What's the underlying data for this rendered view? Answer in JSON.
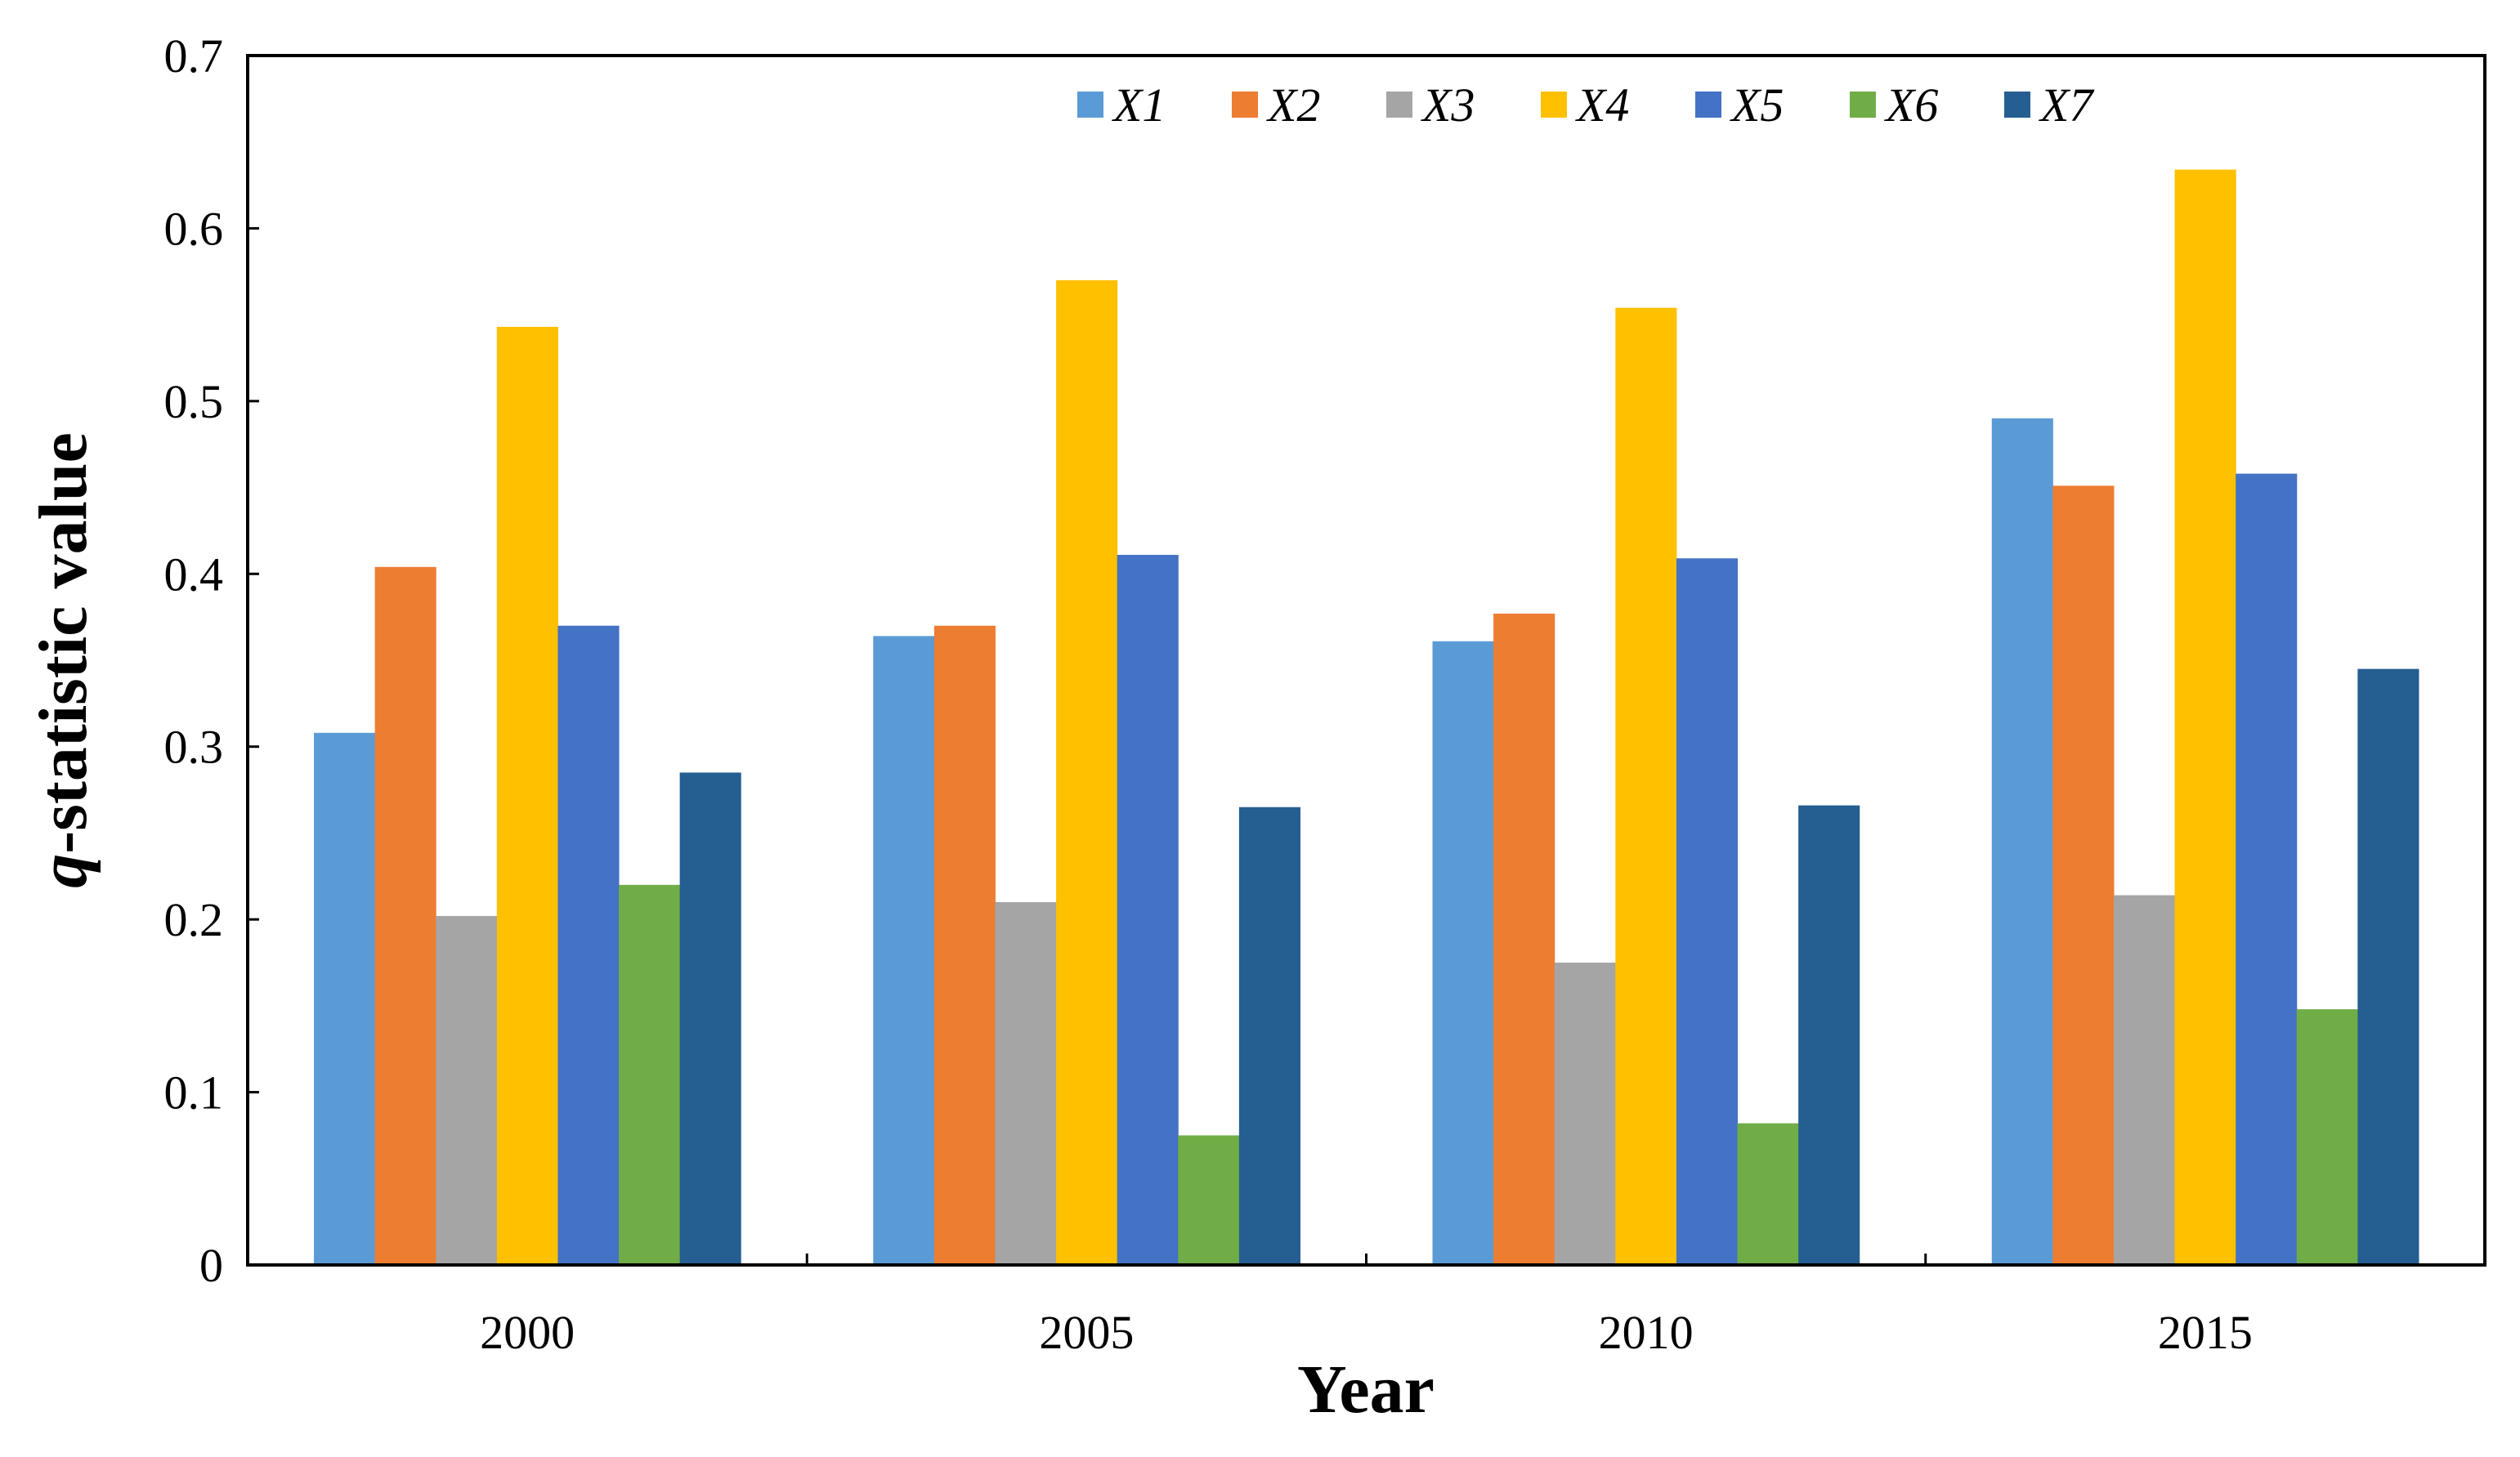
{
  "chart_data": {
    "type": "bar",
    "title": "",
    "xlabel": "Year",
    "ylabel_italic": "q",
    "ylabel_rest": "-statistic value",
    "ylim": [
      0,
      0.7
    ],
    "yticks": [
      "0",
      "0.1",
      "0.2",
      "0.3",
      "0.4",
      "0.5",
      "0.6",
      "0.7"
    ],
    "categories": [
      "2000",
      "2005",
      "2010",
      "2015"
    ],
    "legend_position": "top",
    "grid": false,
    "series": [
      {
        "name": "X1",
        "color": "#5B9BD5",
        "values": [
          0.308,
          0.364,
          0.361,
          0.49
        ]
      },
      {
        "name": "X2",
        "color": "#ED7D31",
        "values": [
          0.404,
          0.37,
          0.377,
          0.451
        ]
      },
      {
        "name": "X3",
        "color": "#A5A5A5",
        "values": [
          0.202,
          0.21,
          0.175,
          0.214
        ]
      },
      {
        "name": "X4",
        "color": "#FFC000",
        "values": [
          0.543,
          0.57,
          0.554,
          0.634
        ]
      },
      {
        "name": "X5",
        "color": "#4472C4",
        "values": [
          0.37,
          0.411,
          0.409,
          0.458
        ]
      },
      {
        "name": "X6",
        "color": "#70AD47",
        "values": [
          0.22,
          0.075,
          0.082,
          0.148
        ]
      },
      {
        "name": "X7",
        "color": "#255E91",
        "values": [
          0.285,
          0.265,
          0.266,
          0.345
        ]
      }
    ]
  }
}
